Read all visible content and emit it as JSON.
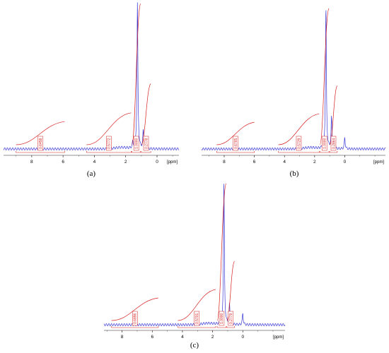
{
  "figure": {
    "panels": [
      {
        "label": "(a)",
        "unit": "[ppm]",
        "x_ticks": [
          "8",
          "6",
          "4",
          "2",
          "0"
        ]
      },
      {
        "label": "(b)",
        "unit": "[ppm]",
        "x_ticks": [
          "8",
          "6",
          "4",
          "2",
          "0"
        ]
      },
      {
        "label": "(c)",
        "unit": "[ppm]",
        "x_ticks": [
          "8",
          "6",
          "4",
          "2",
          "0"
        ]
      }
    ]
  },
  "chart_data": [
    {
      "type": "line",
      "panel_label": "(a)",
      "x_unit": "[ppm]",
      "xlim": [
        9.8,
        -1.4
      ],
      "x_reversed": true,
      "x_ticks": [
        8,
        6,
        4,
        2,
        0
      ],
      "colors": {
        "spectrum": "#3b3bd6",
        "integral": "#d62020"
      },
      "peaks_ppm": [
        {
          "x": 1.25,
          "rel_height": 1.0
        },
        {
          "x": 0.88,
          "rel_height": 0.12
        },
        {
          "x": 1.55,
          "rel_height": 0.04
        }
      ],
      "integrals": [
        {
          "from": 9.0,
          "to": 5.9,
          "value": "0.6458"
        },
        {
          "from": 4.5,
          "to": 1.65,
          "value": "0.5772"
        },
        {
          "from": 1.6,
          "to": 1.05,
          "value": "1.0000"
        },
        {
          "from": 1.0,
          "to": 0.4,
          "value": "0.2778"
        }
      ]
    },
    {
      "type": "line",
      "panel_label": "(b)",
      "x_unit": "[ppm]",
      "xlim": [
        9.5,
        -2.7
      ],
      "x_reversed": true,
      "x_ticks": [
        8,
        6,
        4,
        2,
        0
      ],
      "colors": {
        "spectrum": "#3b3bd6",
        "integral": "#d62020"
      },
      "peaks_ppm": [
        {
          "x": 1.25,
          "rel_height": 1.0
        },
        {
          "x": 0.88,
          "rel_height": 0.22
        },
        {
          "x": 0.0,
          "rel_height": 0.08
        }
      ],
      "integrals": [
        {
          "from": 8.5,
          "to": 6.0,
          "value": "0.6765"
        },
        {
          "from": 4.4,
          "to": 1.7,
          "value": "0.5729"
        },
        {
          "from": 1.65,
          "to": 1.05,
          "value": "1.0000"
        },
        {
          "from": 1.0,
          "to": 0.5,
          "value": "0.2864"
        }
      ]
    },
    {
      "type": "line",
      "panel_label": "(c)",
      "x_unit": "[ppm]",
      "xlim": [
        9.2,
        -2.8
      ],
      "x_reversed": true,
      "x_ticks": [
        8,
        6,
        4,
        2,
        0
      ],
      "colors": {
        "spectrum": "#3b3bd6",
        "integral": "#d62020"
      },
      "peaks_ppm": [
        {
          "x": 1.25,
          "rel_height": 1.0
        },
        {
          "x": 0.88,
          "rel_height": 0.14
        },
        {
          "x": 0.0,
          "rel_height": 0.08
        }
      ],
      "integrals": [
        {
          "from": 8.7,
          "to": 5.6,
          "value": "0.6896"
        },
        {
          "from": 4.3,
          "to": 1.8,
          "value": "0.5701"
        },
        {
          "from": 1.7,
          "to": 1.1,
          "value": "1.0000"
        },
        {
          "from": 1.05,
          "to": 0.55,
          "value": "0.2779"
        }
      ]
    }
  ]
}
